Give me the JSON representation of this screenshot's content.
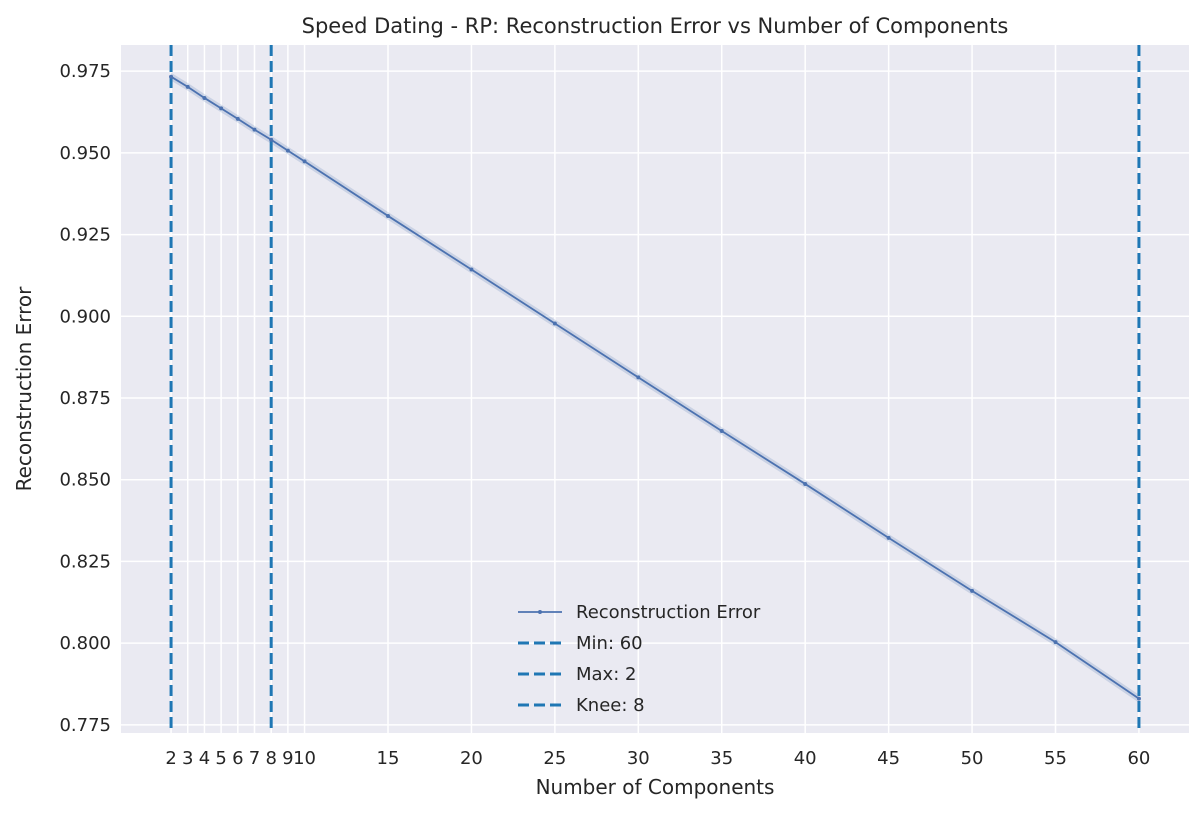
{
  "chart_data": {
    "type": "line",
    "title": "Speed Dating - RP: Reconstruction Error vs Number of Components",
    "xlabel": "Number of Components",
    "ylabel": "Reconstruction Error",
    "grid": true,
    "legend_position": "bottom-center",
    "xlim": [
      -1.0,
      63.0
    ],
    "ylim": [
      0.7725,
      0.983
    ],
    "x_ticks": [
      2,
      3,
      4,
      5,
      6,
      7,
      8,
      9,
      10,
      15,
      20,
      25,
      30,
      35,
      40,
      45,
      50,
      55,
      60
    ],
    "x_tick_labels": [
      "2",
      "3",
      "4",
      "5",
      "6",
      "7",
      "8",
      "9",
      "10",
      "15",
      "20",
      "25",
      "30",
      "35",
      "40",
      "45",
      "50",
      "55",
      "60"
    ],
    "y_ticks": [
      0.775,
      0.8,
      0.825,
      0.85,
      0.875,
      0.9,
      0.925,
      0.95,
      0.975
    ],
    "y_tick_labels": [
      "0.775",
      "0.800",
      "0.825",
      "0.850",
      "0.875",
      "0.900",
      "0.925",
      "0.950",
      "0.975"
    ],
    "series": [
      {
        "name": "Reconstruction Error",
        "color": "#4c72b0",
        "x": [
          2,
          3,
          4,
          5,
          6,
          7,
          8,
          9,
          10,
          15,
          20,
          25,
          30,
          35,
          40,
          45,
          50,
          55,
          60
        ],
        "values": [
          0.9733,
          0.9702,
          0.9668,
          0.9636,
          0.9604,
          0.9571,
          0.954,
          0.9507,
          0.9474,
          0.9307,
          0.9143,
          0.8978,
          0.8813,
          0.8649,
          0.8487,
          0.8322,
          0.816,
          0.8003,
          0.783
        ]
      }
    ],
    "vlines": [
      {
        "name": "Min: 60",
        "x": 60,
        "color": "#1f77b4",
        "style": "dashed"
      },
      {
        "name": "Max: 2",
        "x": 2,
        "color": "#1f77b4",
        "style": "dashed"
      },
      {
        "name": "Knee: 8",
        "x": 8,
        "color": "#1f77b4",
        "style": "dashed"
      }
    ]
  }
}
